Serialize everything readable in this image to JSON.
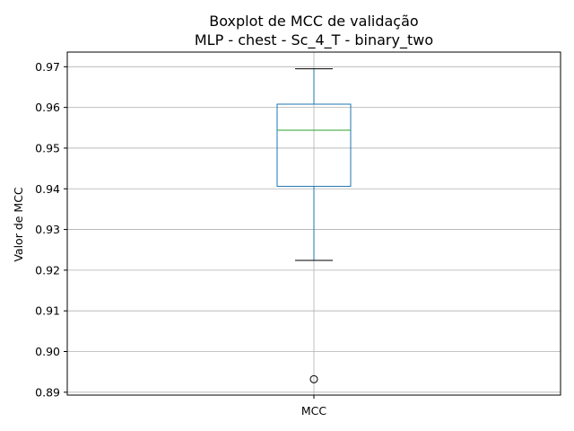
{
  "chart_data": {
    "type": "boxplot",
    "title": [
      "Boxplot de MCC de validação",
      "MLP - chest - Sc_4_T - binary_two"
    ],
    "xlabel": "",
    "ylabel": "Valor de MCC",
    "categories": [
      "MCC"
    ],
    "ylim": [
      0.8893,
      0.9736
    ],
    "yticks": [
      0.89,
      0.9,
      0.91,
      0.92,
      0.93,
      0.94,
      0.95,
      0.96,
      0.97
    ],
    "ytick_labels": [
      "0.89",
      "0.90",
      "0.91",
      "0.92",
      "0.93",
      "0.94",
      "0.95",
      "0.96",
      "0.97"
    ],
    "grid": true,
    "boxes": [
      {
        "label": "MCC",
        "whisker_low": 0.9224,
        "q1": 0.9406,
        "median": 0.9544,
        "q3": 0.9608,
        "whisker_high": 0.9695,
        "outliers": [
          0.8932
        ]
      }
    ],
    "colors": {
      "box": "#1f77b4",
      "median": "#2ca02c",
      "whisker": "#1f77b4",
      "cap": "#000000",
      "outlier": "#000000",
      "grid": "#b0b0b0"
    }
  }
}
